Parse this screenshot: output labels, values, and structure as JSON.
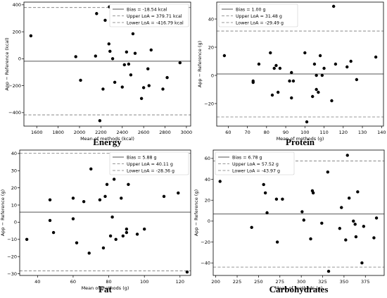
{
  "chart_data": [
    {
      "type": "scatter",
      "panel_title": "Energy",
      "xlabel": "Mean of methods (kcal)",
      "ylabel": "App − Reference (kcal)",
      "xlim": [
        1480,
        3040
      ],
      "ylim": [
        -500,
        420
      ],
      "xticks": [
        1600,
        1800,
        2000,
        2200,
        2400,
        2600,
        2800,
        3000
      ],
      "yticks": [
        -400,
        -200,
        0,
        200,
        400
      ],
      "ytick_labels": [
        "−400",
        "−200",
        "0",
        "200",
        "400"
      ],
      "bias": -18.54,
      "upper_loa": 379.71,
      "lower_loa": -416.79,
      "legend": [
        "Bias = -18.54 kcal",
        "Upper LoA = 379.71 kcal",
        "Lower LoA = -416.79 kcal"
      ],
      "legend_position": "top-right",
      "points": [
        [
          1545,
          170
        ],
        [
          1965,
          15
        ],
        [
          2010,
          -160
        ],
        [
          2150,
          20
        ],
        [
          2160,
          335
        ],
        [
          2190,
          -460
        ],
        [
          2220,
          -225
        ],
        [
          2240,
          285
        ],
        [
          2275,
          110
        ],
        [
          2280,
          385
        ],
        [
          2285,
          55
        ],
        [
          2310,
          0
        ],
        [
          2330,
          -175
        ],
        [
          2400,
          -210
        ],
        [
          2420,
          -45
        ],
        [
          2440,
          50
        ],
        [
          2460,
          -40
        ],
        [
          2480,
          -120
        ],
        [
          2500,
          185
        ],
        [
          2510,
          250
        ],
        [
          2520,
          40
        ],
        [
          2580,
          -295
        ],
        [
          2600,
          -215
        ],
        [
          2640,
          -75
        ],
        [
          2650,
          -200
        ],
        [
          2670,
          65
        ],
        [
          2780,
          -225
        ],
        [
          2820,
          -140
        ],
        [
          2940,
          -30
        ]
      ]
    },
    {
      "type": "scatter",
      "panel_title": "Protein",
      "xlabel": "Mean of methods (g)",
      "ylabel": "App − Reference (g)",
      "xlim": [
        54,
        141
      ],
      "ylim": [
        -36,
        52
      ],
      "xticks": [
        60,
        70,
        80,
        90,
        100,
        110,
        120,
        130,
        140
      ],
      "yticks": [
        -20,
        0,
        20,
        40
      ],
      "ytick_labels": [
        "−20",
        "0",
        "20",
        "40"
      ],
      "bias": 1.0,
      "upper_loa": 31.48,
      "lower_loa": -29.49,
      "legend": [
        "Bias = 1.00 g",
        "Upper LoA = 31.48 g",
        "Lower LoA = -29.49 g"
      ],
      "legend_position": "top-left",
      "points": [
        [
          58,
          14
        ],
        [
          73,
          -4
        ],
        [
          73,
          -5
        ],
        [
          76,
          8
        ],
        [
          82,
          16
        ],
        [
          83,
          -14
        ],
        [
          84,
          5
        ],
        [
          85,
          7
        ],
        [
          86,
          -12
        ],
        [
          87,
          5
        ],
        [
          92,
          -4
        ],
        [
          93,
          2
        ],
        [
          93,
          -16
        ],
        [
          94,
          -4
        ],
        [
          100,
          16
        ],
        [
          101,
          -33
        ],
        [
          104,
          -15
        ],
        [
          105,
          8
        ],
        [
          106,
          0
        ],
        [
          106,
          -10
        ],
        [
          107,
          -12
        ],
        [
          108,
          14
        ],
        [
          109,
          0
        ],
        [
          110,
          5
        ],
        [
          114,
          -18
        ],
        [
          115,
          49
        ],
        [
          116,
          8
        ],
        [
          122,
          6
        ],
        [
          124,
          10
        ],
        [
          127,
          -3
        ],
        [
          137,
          13
        ]
      ]
    },
    {
      "type": "scatter",
      "panel_title": "Fat",
      "xlabel": "Mean of methods (g)",
      "ylabel": "App − Reference (g)",
      "xlim": [
        30,
        126
      ],
      "ylim": [
        -31,
        42
      ],
      "xticks": [
        40,
        60,
        80,
        100,
        120
      ],
      "yticks": [
        -30,
        -20,
        -10,
        0,
        10,
        20,
        30,
        40
      ],
      "ytick_labels": [
        "−30",
        "−20",
        "−10",
        "0",
        "10",
        "20",
        "30",
        "40"
      ],
      "bias": 5.88,
      "upper_loa": 40.11,
      "lower_loa": -28.36,
      "legend": [
        "Bias = 5.88 g",
        "Upper LoA = 40.11 g",
        "Lower LoA = -28.36 g"
      ],
      "legend_position": "top-right",
      "points": [
        [
          34,
          -10
        ],
        [
          47,
          13
        ],
        [
          47,
          1
        ],
        [
          49,
          -6
        ],
        [
          60,
          2
        ],
        [
          60,
          14
        ],
        [
          62,
          -12
        ],
        [
          66,
          12
        ],
        [
          69,
          -18
        ],
        [
          70,
          31
        ],
        [
          75,
          13
        ],
        [
          77,
          -15
        ],
        [
          78,
          15
        ],
        [
          79,
          22
        ],
        [
          81,
          -8
        ],
        [
          82,
          3
        ],
        [
          82,
          39
        ],
        [
          83,
          25
        ],
        [
          84,
          -10
        ],
        [
          86,
          34
        ],
        [
          86,
          36
        ],
        [
          87,
          14
        ],
        [
          88,
          -8
        ],
        [
          90,
          -6
        ],
        [
          90,
          -4
        ],
        [
          91,
          22
        ],
        [
          96,
          -7
        ],
        [
          100,
          -4
        ],
        [
          111,
          15
        ],
        [
          119,
          17
        ],
        [
          124,
          -29
        ]
      ]
    },
    {
      "type": "scatter",
      "panel_title": "Carbohydrates",
      "xlabel": "Mean of methods (g)",
      "ylabel": "App − Reference (g)",
      "xlim": [
        197,
        397
      ],
      "ylim": [
        -52,
        68
      ],
      "xticks": [
        200,
        225,
        250,
        275,
        300,
        325,
        350,
        375
      ],
      "yticks": [
        -40,
        -20,
        0,
        20,
        40,
        60
      ],
      "ytick_labels": [
        "−40",
        "−20",
        "0",
        "20",
        "40",
        "60"
      ],
      "bias": 6.78,
      "upper_loa": 57.52,
      "lower_loa": -43.97,
      "legend": [
        "Bias = 6.78 g",
        "Upper LoA = 57.52 g",
        "Lower LoA = -43.97 g"
      ],
      "legend_position": "top-left",
      "points": [
        [
          205,
          38
        ],
        [
          242,
          -6
        ],
        [
          256,
          35
        ],
        [
          258,
          27
        ],
        [
          260,
          8
        ],
        [
          271,
          21
        ],
        [
          272,
          -20
        ],
        [
          278,
          21
        ],
        [
          301,
          9
        ],
        [
          303,
          1
        ],
        [
          311,
          -17
        ],
        [
          313,
          29
        ],
        [
          314,
          27
        ],
        [
          324,
          -2
        ],
        [
          331,
          47
        ],
        [
          332,
          -48
        ],
        [
          345,
          -7
        ],
        [
          347,
          13
        ],
        [
          352,
          -18
        ],
        [
          354,
          63
        ],
        [
          356,
          22
        ],
        [
          361,
          0
        ],
        [
          363,
          -3
        ],
        [
          364,
          -15
        ],
        [
          366,
          28
        ],
        [
          371,
          -40
        ],
        [
          373,
          -5
        ],
        [
          385,
          -16
        ],
        [
          388,
          3
        ]
      ]
    }
  ]
}
